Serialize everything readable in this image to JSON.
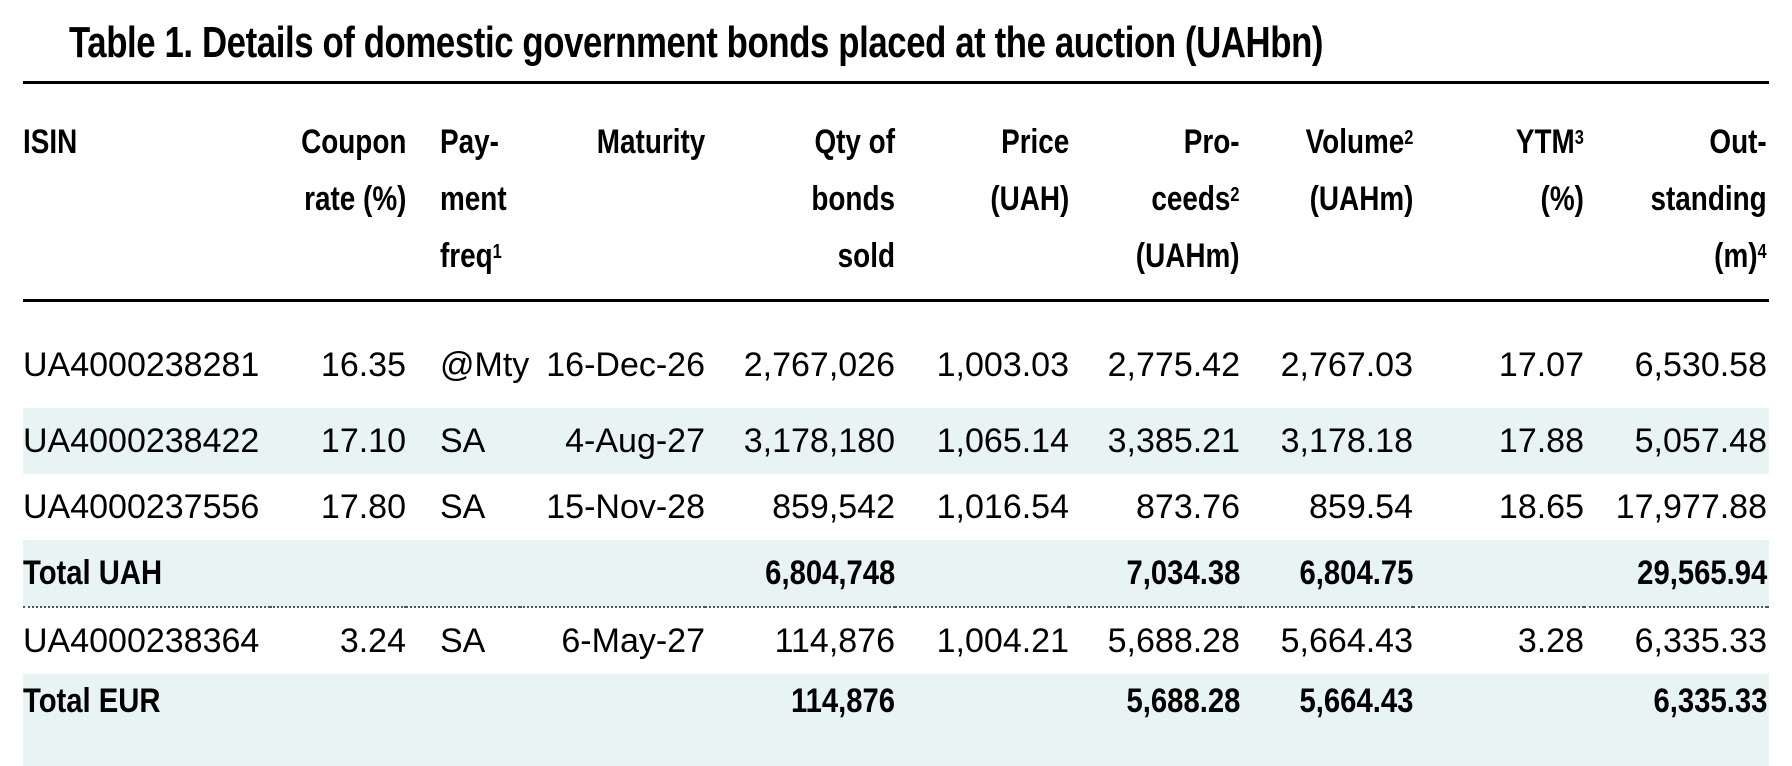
{
  "title": "Table 1. Details of domestic government bonds placed at the auction (UAHbn)",
  "headers": {
    "isin": "ISIN",
    "coupon_1": "Coupon",
    "coupon_2": "rate (%)",
    "pay_1": "Pay-",
    "pay_2": "ment",
    "pay_3": "freq",
    "pay_sup": "1",
    "maturity": "Maturity",
    "qty_1": "Qty of",
    "qty_2": "bonds",
    "qty_3": "sold",
    "price_1": "Price",
    "price_2": "(UAH)",
    "proceeds_1": "Pro-",
    "proceeds_2": "ceeds",
    "proceeds_sup": "2",
    "proceeds_3": "(UAHm)",
    "volume_1": "Volume",
    "volume_sup": "2",
    "volume_2": "(UAHm)",
    "ytm_1": "YTM",
    "ytm_sup": "3",
    "ytm_2": "(%)",
    "out_1": "Out-",
    "out_2": "standing",
    "out_3": "(m)",
    "out_sup": "4"
  },
  "rows": [
    {
      "isin": "UA4000238281",
      "coupon": "16.35",
      "pay": "@Mty",
      "maturity": "16-Dec-26",
      "qty": "2,767,026",
      "price": "1,003.03",
      "proceeds": "2,775.42",
      "volume": "2,767.03",
      "ytm": "17.07",
      "outstanding": "6,530.58"
    },
    {
      "isin": "UA4000238422",
      "coupon": "17.10",
      "pay": "SA",
      "maturity": "4-Aug-27",
      "qty": "3,178,180",
      "price": "1,065.14",
      "proceeds": "3,385.21",
      "volume": "3,178.18",
      "ytm": "17.88",
      "outstanding": "5,057.48"
    },
    {
      "isin": "UA4000237556",
      "coupon": "17.80",
      "pay": "SA",
      "maturity": "15-Nov-28",
      "qty": "859,542",
      "price": "1,016.54",
      "proceeds": "873.76",
      "volume": "859.54",
      "ytm": "18.65",
      "outstanding": "17,977.88"
    },
    {
      "isin": "UA4000238364",
      "coupon": "3.24",
      "pay": "SA",
      "maturity": "6-May-27",
      "qty": "114,876",
      "price": "1,004.21",
      "proceeds": "5,688.28",
      "volume": "5,664.43",
      "ytm": "3.28",
      "outstanding": "6,335.33"
    }
  ],
  "totals": [
    {
      "label": "Total UAH",
      "qty": "6,804,748",
      "proceeds": "7,034.38",
      "volume": "6,804.75",
      "outstanding": "29,565.94"
    },
    {
      "label": "Total EUR",
      "qty": "114,876",
      "proceeds": "5,688.28",
      "volume": "5,664.43",
      "outstanding": "6,335.33"
    }
  ]
}
